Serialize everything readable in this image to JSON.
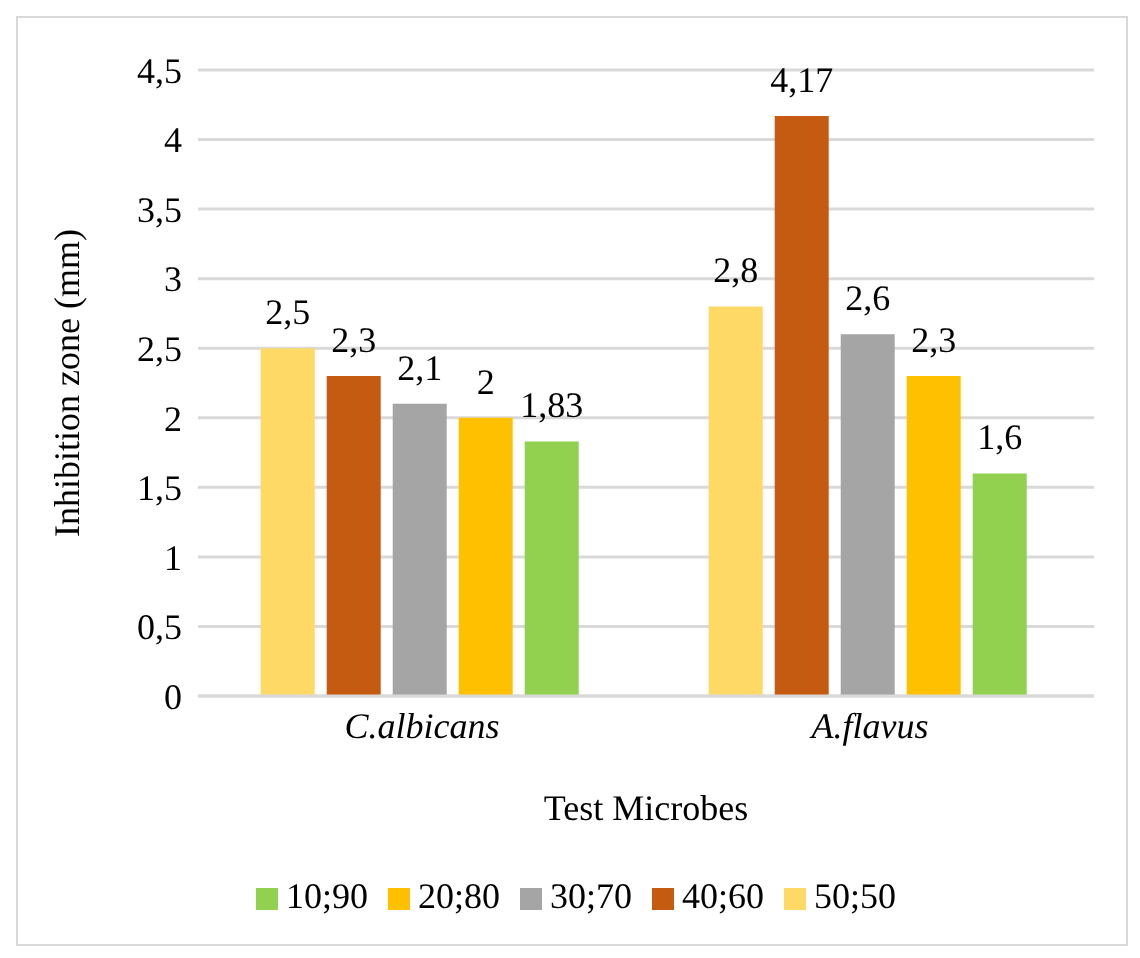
{
  "chart_data": {
    "type": "bar",
    "xlabel": "Test Microbes",
    "ylabel": "Inhibition zone (mm)",
    "categories": [
      "C.albicans",
      "A.flavus"
    ],
    "series": [
      {
        "name": "50;50",
        "color": "#ffd966",
        "values": [
          2.5,
          2.8
        ],
        "value_labels": [
          "2,5",
          "2,8"
        ]
      },
      {
        "name": "40;60",
        "color": "#c55a11",
        "values": [
          2.3,
          4.17
        ],
        "value_labels": [
          "2,3",
          "4,17"
        ]
      },
      {
        "name": "30;70",
        "color": "#a5a5a5",
        "values": [
          2.1,
          2.6
        ],
        "value_labels": [
          "2,1",
          "2,6"
        ]
      },
      {
        "name": "20;80",
        "color": "#ffc000",
        "values": [
          2,
          2.3
        ],
        "value_labels": [
          "2",
          "2,3"
        ]
      },
      {
        "name": "10;90",
        "color": "#92d050",
        "values": [
          1.83,
          1.6
        ],
        "value_labels": [
          "1,83",
          "1,6"
        ]
      }
    ],
    "ylim": [
      0,
      4.5
    ],
    "yticks": [
      0,
      {
        "value": 0.5,
        "label": "0,5"
      },
      1,
      {
        "value": 1.5,
        "label": "1,5"
      },
      2,
      {
        "value": 2.5,
        "label": "2,5"
      },
      3,
      {
        "value": 3.5,
        "label": "3,5"
      },
      4,
      {
        "value": 4.5,
        "label": "4,5"
      }
    ],
    "grid": "y",
    "legend": "bottom"
  }
}
